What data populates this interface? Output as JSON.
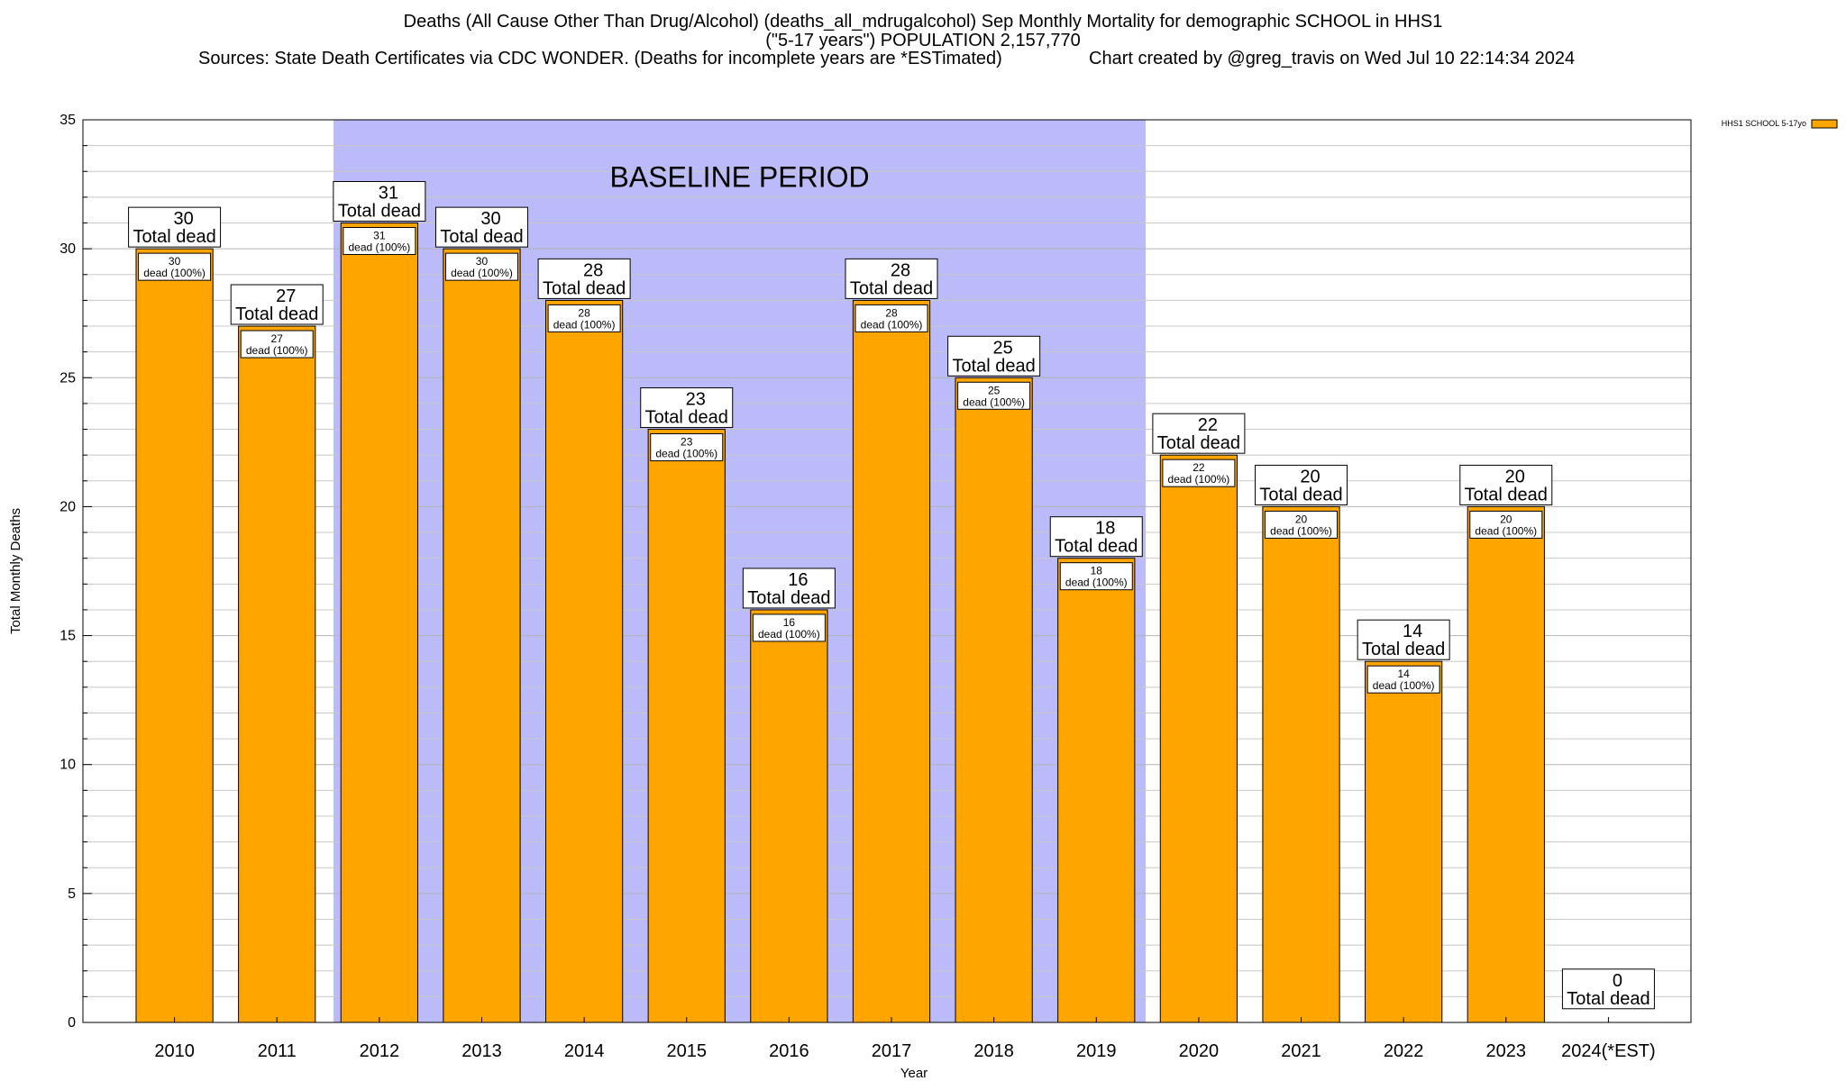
{
  "header": {
    "title_line1": "Deaths (All Cause Other Than Drug/Alcohol) (deaths_all_mdrugalcohol) Sep Monthly Mortality for demographic SCHOOL in HHS1",
    "title_line2": "(\"5-17 years\") POPULATION 2,157,770",
    "sources": "Sources: State Death Certificates via CDC WONDER. (Deaths for incomplete years are *ESTimated)",
    "created": "Chart created by @greg_travis on Wed Jul 10 22:14:34 2024"
  },
  "chart_data": {
    "type": "bar",
    "title": "Deaths (All Cause Other Than Drug/Alcohol) (deaths_all_mdrugalcohol) Sep Monthly Mortality for demographic SCHOOL in HHS1",
    "xlabel": "Year",
    "ylabel": "Total Monthly Deaths",
    "ylim": [
      0,
      35
    ],
    "yticks": [
      0,
      5,
      10,
      15,
      20,
      25,
      30,
      35
    ],
    "grid": true,
    "legend_position": "top-right",
    "categories": [
      "2010",
      "2011",
      "2012",
      "2013",
      "2014",
      "2015",
      "2016",
      "2017",
      "2018",
      "2019",
      "2020",
      "2021",
      "2022",
      "2023",
      "2024(*EST)"
    ],
    "series": [
      {
        "name": "HHS1 SCHOOL 5-17yo",
        "color": "#ffa500",
        "values": [
          30,
          27,
          31,
          30,
          28,
          23,
          16,
          28,
          25,
          18,
          22,
          20,
          14,
          20,
          0
        ]
      }
    ],
    "total_label_suffix": "Total dead",
    "inner_label_suffix": "dead (100%)",
    "baseline": {
      "label": "BASELINE PERIOD",
      "from": "2012",
      "to": "2019",
      "color": "#bbbbf9"
    }
  }
}
